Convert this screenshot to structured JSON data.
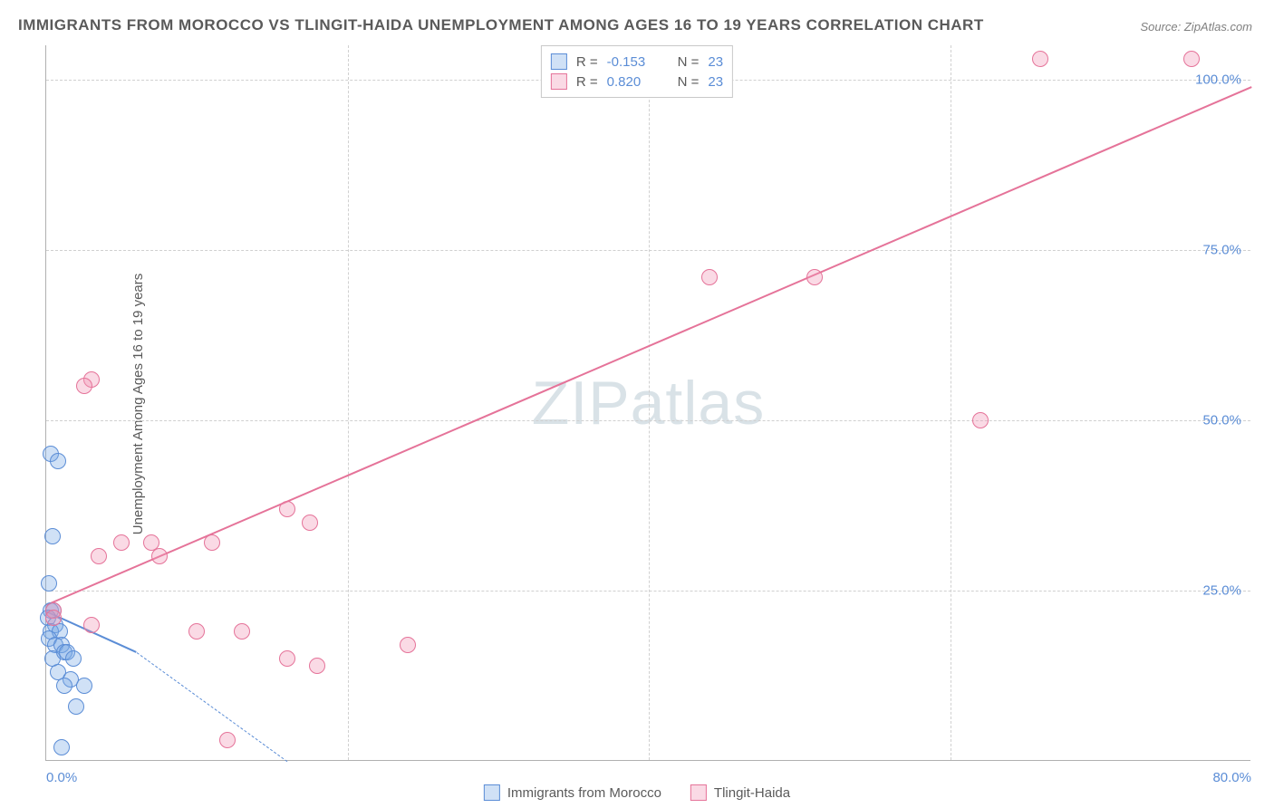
{
  "title": "IMMIGRANTS FROM MOROCCO VS TLINGIT-HAIDA UNEMPLOYMENT AMONG AGES 16 TO 19 YEARS CORRELATION CHART",
  "source": "Source: ZipAtlas.com",
  "ylabel": "Unemployment Among Ages 16 to 19 years",
  "watermark_a": "ZIP",
  "watermark_b": "atlas",
  "chart": {
    "type": "scatter",
    "xlim": [
      0,
      80
    ],
    "ylim": [
      0,
      105
    ],
    "xticks": [
      {
        "v": 0,
        "label": "0.0%",
        "align": "left"
      },
      {
        "v": 80,
        "label": "80.0%",
        "align": "right"
      }
    ],
    "yticks": [
      {
        "v": 25,
        "label": "25.0%"
      },
      {
        "v": 50,
        "label": "50.0%"
      },
      {
        "v": 75,
        "label": "75.0%"
      },
      {
        "v": 100,
        "label": "100.0%"
      }
    ],
    "grid_vlines": [
      20,
      40,
      60
    ],
    "background_color": "#ffffff",
    "grid_color": "#d0d0d0",
    "axis_label_color": "#5b8dd6",
    "series": [
      {
        "key": "morocco",
        "label": "Immigrants from Morocco",
        "fill": "rgba(120,170,230,0.35)",
        "stroke": "#5b8dd6",
        "r_value": "-0.153",
        "n_value": "23",
        "trend": {
          "x1": 0,
          "y1": 22,
          "x2": 6,
          "y2": 16,
          "solid": true
        },
        "trend_ext": {
          "x1": 6,
          "y1": 16,
          "x2": 16,
          "y2": 0,
          "solid": false
        },
        "points": [
          [
            0.3,
            45
          ],
          [
            0.8,
            44
          ],
          [
            0.4,
            33
          ],
          [
            0.2,
            26
          ],
          [
            0.3,
            22
          ],
          [
            0.5,
            22
          ],
          [
            0.1,
            21
          ],
          [
            0.6,
            20
          ],
          [
            0.3,
            19
          ],
          [
            0.9,
            19
          ],
          [
            0.2,
            18
          ],
          [
            0.6,
            17
          ],
          [
            1.0,
            17
          ],
          [
            0.4,
            15
          ],
          [
            1.2,
            16
          ],
          [
            1.4,
            16
          ],
          [
            1.8,
            15
          ],
          [
            0.8,
            13
          ],
          [
            1.6,
            12
          ],
          [
            2.0,
            8
          ],
          [
            1.2,
            11
          ],
          [
            2.5,
            11
          ],
          [
            1.0,
            2
          ]
        ]
      },
      {
        "key": "tlingit",
        "label": "Tlingit-Haida",
        "fill": "rgba(240,150,180,0.35)",
        "stroke": "#e57399",
        "r_value": "0.820",
        "n_value": "23",
        "trend": {
          "x1": 0,
          "y1": 23,
          "x2": 80,
          "y2": 99,
          "solid": true
        },
        "points": [
          [
            66,
            103
          ],
          [
            76,
            103
          ],
          [
            44,
            71
          ],
          [
            51,
            71
          ],
          [
            62,
            50
          ],
          [
            3,
            56
          ],
          [
            2.5,
            55
          ],
          [
            16,
            37
          ],
          [
            17.5,
            35
          ],
          [
            5,
            32
          ],
          [
            7,
            32
          ],
          [
            11,
            32
          ],
          [
            3.5,
            30
          ],
          [
            7.5,
            30
          ],
          [
            0.5,
            22
          ],
          [
            0.5,
            21
          ],
          [
            3,
            20
          ],
          [
            10,
            19
          ],
          [
            13,
            19
          ],
          [
            16,
            15
          ],
          [
            24,
            17
          ],
          [
            18,
            14
          ],
          [
            12,
            3
          ]
        ]
      }
    ]
  },
  "legend_top_labels": {
    "r": "R =",
    "n": "N ="
  }
}
